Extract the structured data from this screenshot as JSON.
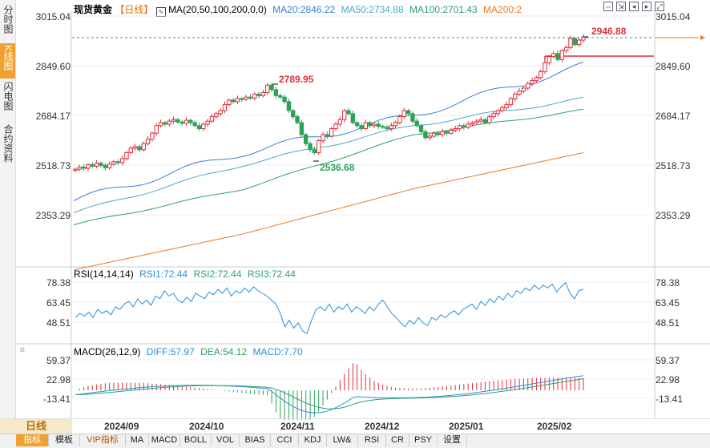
{
  "left_tabs": [
    {
      "label": "分时图",
      "active": false
    },
    {
      "label": "K线图",
      "active": true
    },
    {
      "label": "闪电图",
      "active": false
    },
    {
      "label": "合约资料",
      "active": false
    }
  ],
  "header": {
    "symbol": "现货黄金",
    "period": "【日线】",
    "ma_label": "MA(20,50,100,200,0,0)",
    "ma20": "MA20:2846.22",
    "ma50": "MA50:2734.88",
    "ma100": "MA100:2701.43",
    "ma200": "MA200:2"
  },
  "colors": {
    "up": "#e0303a",
    "down": "#2fa05a",
    "ma20": "#3a7dd8",
    "ma50": "#4aa8c8",
    "ma100": "#2fa070",
    "ma200": "#f07820",
    "rsi": "#2b8fd8",
    "accent": "#f0a030"
  },
  "price_axis": {
    "ticks": [
      "3015.04",
      "2849.60",
      "2684.17",
      "2518.73",
      "2353.29"
    ]
  },
  "annotations": {
    "high": "2789.95",
    "low": "2536.68",
    "last_high": "2946.88"
  },
  "rsi": {
    "label": "RSI(14,14,14)",
    "rsi1": "RSI1:72.44",
    "rsi2": "RSI2:72.44",
    "rsi3": "RSI3:72.44",
    "ticks": [
      "78.38",
      "63.45",
      "48.51"
    ],
    "values": [
      52,
      55,
      53,
      56,
      52,
      58,
      55,
      57,
      54,
      60,
      58,
      62,
      64,
      60,
      66,
      62,
      65,
      61,
      68,
      66,
      72,
      68,
      70,
      65,
      63,
      67,
      64,
      70,
      68,
      66,
      71,
      69,
      73,
      70,
      74,
      68,
      72,
      70,
      74,
      71,
      75,
      72,
      70,
      68,
      65,
      62,
      55,
      45,
      50,
      44,
      48,
      42,
      40,
      50,
      58,
      60,
      57,
      62,
      56,
      60,
      58,
      62,
      56,
      60,
      58,
      55,
      60,
      57,
      62,
      65,
      60,
      55,
      52,
      48,
      45,
      50,
      47,
      52,
      48,
      46,
      52,
      50,
      54,
      52,
      55,
      57,
      54,
      58,
      60,
      62,
      58,
      64,
      61,
      66,
      63,
      68,
      65,
      70,
      67,
      72,
      70,
      74,
      72,
      76,
      73,
      76,
      74,
      77,
      71,
      75,
      78,
      70,
      66,
      72,
      73
    ]
  },
  "macd": {
    "label": "MACD(26,12,9)",
    "diff": "DIFF:57.97",
    "dea": "DEA:54.12",
    "macd": "MACD:7.70",
    "ticks": [
      "59.37",
      "22.98",
      "-13.41"
    ]
  },
  "dates": [
    "2024/09",
    "2024/10",
    "2024/11",
    "2024/12",
    "2025/01",
    "2025/02"
  ],
  "period_button": "日线",
  "indicator_tabs": [
    "指标",
    "模板",
    "VIP指标",
    "MA",
    "MACD",
    "BOLL",
    "VOL",
    "BIAS",
    "CCI",
    "KDJ",
    "LW&",
    "RSI",
    "CR",
    "PSY",
    "设置"
  ],
  "chart_data": {
    "type": "candlestick",
    "ylim": [
      2300,
      3040
    ],
    "closes": [
      2505,
      2512,
      2508,
      2520,
      2515,
      2525,
      2518,
      2510,
      2522,
      2530,
      2527,
      2540,
      2560,
      2575,
      2580,
      2570,
      2590,
      2605,
      2625,
      2650,
      2660,
      2655,
      2665,
      2670,
      2662,
      2658,
      2668,
      2660,
      2650,
      2640,
      2655,
      2665,
      2680,
      2690,
      2700,
      2720,
      2735,
      2730,
      2740,
      2738,
      2745,
      2742,
      2755,
      2750,
      2760,
      2785,
      2770,
      2750,
      2745,
      2730,
      2700,
      2680,
      2660,
      2620,
      2590,
      2570,
      2560,
      2600,
      2620,
      2615,
      2640,
      2655,
      2670,
      2700,
      2690,
      2660,
      2650,
      2640,
      2660,
      2650,
      2655,
      2648,
      2645,
      2640,
      2650,
      2660,
      2680,
      2700,
      2690,
      2665,
      2650,
      2630,
      2610,
      2615,
      2625,
      2620,
      2630,
      2625,
      2635,
      2640,
      2650,
      2645,
      2655,
      2660,
      2665,
      2670,
      2660,
      2680,
      2690,
      2700,
      2710,
      2720,
      2740,
      2755,
      2765,
      2775,
      2790,
      2800,
      2810,
      2830,
      2860,
      2880,
      2890,
      2870,
      2900,
      2910,
      2940,
      2920,
      2935,
      2945
    ],
    "ma20": [
      2400,
      2560,
      2684,
      2850
    ],
    "ma50": [
      2360,
      2520,
      2650,
      2740
    ],
    "ma100": [
      2320,
      2440,
      2620,
      2702
    ],
    "ma200": [
      2170,
      2290,
      2440,
      2560
    ]
  }
}
